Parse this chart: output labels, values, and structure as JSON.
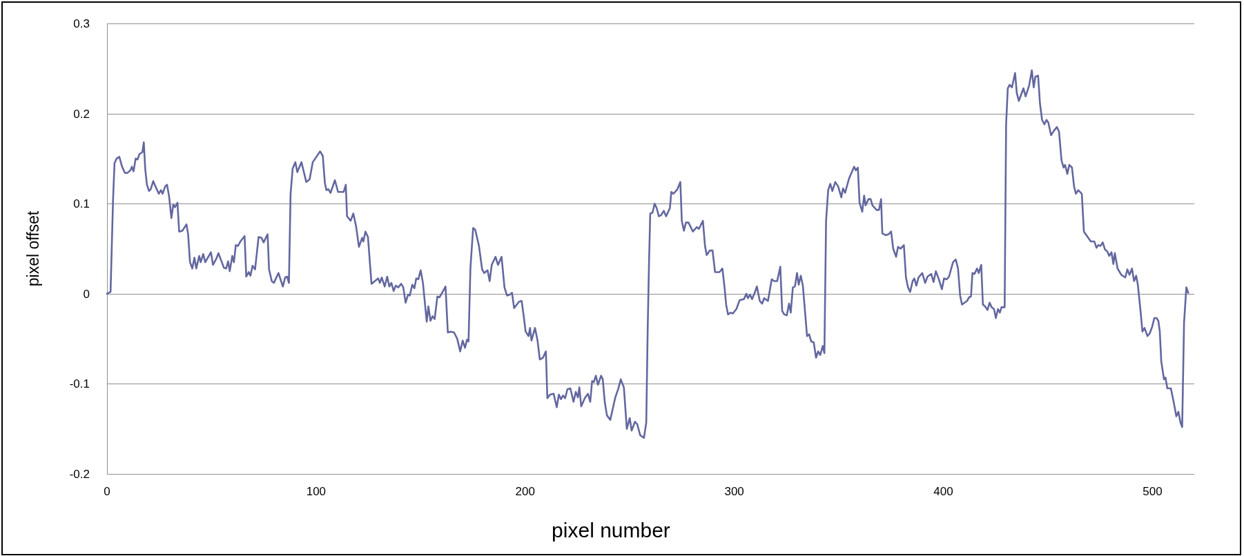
{
  "chart_data": {
    "type": "line",
    "xlabel": "pixel number",
    "ylabel": "pixel offset",
    "x": [
      0,
      1.7,
      2.9,
      3.6,
      4.6,
      5.9,
      7.2,
      8.6,
      9.7,
      11.2,
      11.9,
      12.7,
      13.7,
      14.6,
      15.5,
      16.9,
      17.6,
      18.3,
      19.1,
      20.1,
      20.9,
      22.1,
      23.2,
      24.8,
      25.8,
      26.6,
      27.8,
      28.7,
      29.7,
      30.8,
      31.7,
      32.5,
      33.7,
      34.5,
      36.1,
      38.0,
      38.8,
      39.7,
      40.8,
      41.8,
      42.7,
      44.1,
      44.8,
      46.0,
      47.0,
      49.7,
      50.7,
      52.3,
      53.3,
      54.4,
      55.9,
      57.0,
      57.9,
      58.7,
      59.9,
      60.7,
      61.6,
      62.6,
      63.8,
      65.8,
      66.6,
      67.8,
      68.6,
      69.6,
      70.8,
      72.5,
      73.9,
      74.9,
      76.8,
      77.5,
      78.8,
      79.8,
      82.0,
      84.1,
      85.2,
      86.1,
      87.0,
      87.8,
      88.8,
      90.1,
      91.0,
      93.0,
      95.3,
      96.9,
      98.4,
      101.9,
      103.2,
      104.2,
      104.9,
      105.9,
      106.9,
      109.0,
      110.5,
      113.2,
      114.2,
      114.8,
      116.5,
      117.8,
      119.1,
      120.5,
      122.0,
      122.6,
      123.6,
      124.8,
      126.5,
      129.7,
      130.5,
      131.4,
      132.8,
      134.0,
      135.0,
      136.0,
      137.1,
      138.1,
      139.3,
      140.7,
      141.7,
      142.8,
      144.0,
      144.8,
      146.0,
      147.0,
      147.9,
      148.9,
      150.0,
      151.1,
      152.9,
      153.7,
      154.7,
      155.7,
      156.7,
      158.0,
      159.0,
      160.5,
      161.9,
      163.0,
      164.3,
      166.0,
      167.5,
      168.9,
      170.1,
      171.2,
      172.2,
      172.9,
      173.8,
      175.1,
      176.1,
      177.9,
      179.4,
      180.4,
      182.0,
      183.0,
      184.0,
      185.8,
      187.0,
      188.7,
      190.1,
      191.3,
      192.7,
      193.7,
      194.7,
      197.0,
      198.3,
      199.2,
      200.2,
      201.6,
      202.3,
      203.0,
      204.7,
      205.9,
      207.0,
      208.5,
      209.9,
      210.6,
      211.9,
      213.6,
      215.1,
      216.1,
      217.1,
      218.1,
      219.1,
      220.2,
      221.6,
      223.1,
      224.2,
      225.2,
      225.9,
      226.8,
      228.5,
      230.0,
      231.1,
      232.0,
      232.8,
      233.8,
      234.8,
      236.3,
      237.1,
      238.1,
      239.1,
      240.7,
      243.1,
      244.6,
      245.7,
      247.2,
      248.6,
      250.0,
      250.9,
      252.5,
      253.6,
      255.0,
      256.8,
      257.9,
      258.6,
      259.2,
      259.8,
      260.9,
      261.9,
      262.9,
      263.9,
      264.9,
      266.3,
      267.4,
      269.2,
      269.9,
      270.9,
      272.8,
      274.2,
      274.9,
      275.9,
      276.9,
      278.1,
      280.2,
      282.1,
      283.1,
      285.0,
      286.0,
      286.8,
      288.3,
      289.6,
      290.8,
      292.9,
      294.3,
      295.3,
      296.1,
      297.0,
      298.2,
      299.3,
      301.0,
      302.6,
      304.6,
      305.8,
      306.5,
      307.5,
      308.5,
      309.6,
      310.8,
      312.2,
      313.3,
      314.3,
      316.1,
      317.9,
      319.1,
      320.5,
      322.0,
      322.9,
      323.9,
      325.1,
      326.2,
      327.0,
      328.0,
      329.0,
      330.0,
      330.8,
      331.8,
      332.8,
      334.8,
      335.8,
      336.8,
      338.0,
      339.1,
      340.1,
      341.1,
      342.3,
      343.1,
      343.9,
      344.9,
      345.9,
      346.9,
      348.3,
      349.7,
      351.2,
      352.0,
      353.0,
      354.9,
      357.3,
      358.1,
      359.1,
      359.9,
      361.2,
      362.1,
      362.8,
      364.2,
      365.2,
      366.1,
      368.1,
      369.2,
      370.2,
      370.8,
      372.4,
      373.8,
      375.0,
      376.0,
      377.4,
      378.3,
      379.5,
      381.1,
      382.1,
      383.1,
      384.1,
      385.3,
      386.1,
      387.1,
      388.1,
      389.9,
      391.3,
      392.4,
      394.2,
      395.3,
      396.4,
      397.7,
      399.3,
      400.3,
      401.6,
      402.7,
      404.6,
      405.9,
      407.0,
      408.0,
      408.9,
      411.3,
      412.3,
      413.2,
      413.9,
      414.9,
      416.1,
      416.9,
      418.1,
      418.9,
      419.9,
      421.1,
      422.1,
      423.1,
      424.2,
      425.1,
      426.1,
      427.0,
      427.8,
      429.3,
      430.0,
      430.8,
      431.7,
      432.8,
      434.3,
      435.1,
      436.1,
      438.3,
      439.3,
      441.0,
      442.3,
      443.2,
      444.0,
      445.3,
      446.2,
      447.2,
      448.3,
      449.3,
      450.2,
      451.5,
      452.9,
      454.3,
      455.3,
      456.5,
      457.5,
      458.2,
      459.3,
      460.2,
      461.5,
      462.5,
      463.4,
      464.5,
      466.2,
      467.2,
      468.7,
      470.5,
      472.2,
      473.2,
      474.1,
      475.1,
      476.2,
      477.3,
      478.4,
      479.3,
      480.4,
      481.3,
      482.0,
      483.3,
      485.1,
      487.0,
      488.0,
      489.0,
      490.2,
      491.2,
      492.2,
      493.0,
      494.2,
      495.2,
      496.2,
      497.6,
      498.7,
      499.8,
      500.9,
      501.9,
      502.8,
      503.5,
      504.2,
      505.5,
      506.2,
      507.1,
      508.8,
      510.2,
      511.4,
      512.4,
      513.4,
      514.2,
      515.1,
      516.2,
      517.1
    ],
    "series": [
      {
        "color": "#63679f",
        "values": [
          0,
          0.002,
          0.105,
          0.145,
          0.15,
          0.152,
          0.141,
          0.134,
          0.134,
          0.137,
          0.141,
          0.136,
          0.15,
          0.149,
          0.155,
          0.157,
          0.168,
          0.138,
          0.121,
          0.114,
          0.116,
          0.125,
          0.119,
          0.111,
          0.115,
          0.111,
          0.119,
          0.121,
          0.108,
          0.084,
          0.099,
          0.096,
          0.101,
          0.069,
          0.07,
          0.077,
          0.066,
          0.035,
          0.028,
          0.04,
          0.028,
          0.042,
          0.035,
          0.044,
          0.035,
          0.046,
          0.032,
          0.039,
          0.045,
          0.038,
          0.029,
          0.028,
          0.036,
          0.025,
          0.042,
          0.035,
          0.054,
          0.053,
          0.058,
          0.064,
          0.019,
          0.024,
          0.02,
          0.031,
          0.027,
          0.063,
          0.062,
          0.057,
          0.066,
          0.027,
          0.014,
          0.012,
          0.023,
          0.008,
          0.018,
          0.019,
          0.012,
          0.111,
          0.139,
          0.146,
          0.135,
          0.146,
          0.124,
          0.127,
          0.146,
          0.158,
          0.153,
          0.123,
          0.115,
          0.116,
          0.112,
          0.126,
          0.113,
          0.113,
          0.121,
          0.086,
          0.081,
          0.089,
          0.075,
          0.052,
          0.062,
          0.058,
          0.069,
          0.063,
          0.011,
          0.017,
          0.012,
          0.018,
          0.008,
          0.019,
          0.008,
          0.012,
          0.003,
          0.009,
          0.007,
          0.011,
          0.007,
          -0.01,
          -0.001,
          -0.002,
          0.01,
          0.006,
          0.017,
          0.016,
          0.026,
          0.012,
          -0.031,
          -0.014,
          -0.03,
          -0.025,
          -0.028,
          -0.003,
          -0.004,
          0.002,
          0.008,
          -0.043,
          -0.042,
          -0.043,
          -0.05,
          -0.064,
          -0.052,
          -0.06,
          -0.051,
          -0.053,
          0.028,
          0.073,
          0.071,
          0.053,
          0.027,
          0.023,
          0.026,
          0.014,
          0.032,
          0.041,
          0.032,
          0.041,
          0.007,
          -0.002,
          -0.001,
          0.001,
          -0.016,
          -0.009,
          -0.008,
          -0.023,
          -0.042,
          -0.047,
          -0.038,
          -0.052,
          -0.038,
          -0.052,
          -0.073,
          -0.071,
          -0.064,
          -0.116,
          -0.112,
          -0.111,
          -0.126,
          -0.112,
          -0.117,
          -0.113,
          -0.116,
          -0.106,
          -0.105,
          -0.12,
          -0.109,
          -0.115,
          -0.104,
          -0.125,
          -0.116,
          -0.111,
          -0.12,
          -0.097,
          -0.098,
          -0.091,
          -0.101,
          -0.091,
          -0.095,
          -0.121,
          -0.135,
          -0.14,
          -0.115,
          -0.105,
          -0.095,
          -0.104,
          -0.15,
          -0.138,
          -0.152,
          -0.142,
          -0.145,
          -0.157,
          -0.16,
          -0.143,
          -0.038,
          0.032,
          0.089,
          0.09,
          0.1,
          0.095,
          0.086,
          0.087,
          0.092,
          0.086,
          0.095,
          0.113,
          0.111,
          0.116,
          0.124,
          0.081,
          0.07,
          0.079,
          0.079,
          0.069,
          0.074,
          0.072,
          0.081,
          0.053,
          0.043,
          0.048,
          0.048,
          0.024,
          0.024,
          0.028,
          0.008,
          -0.012,
          -0.023,
          -0.021,
          -0.022,
          -0.017,
          -0.007,
          -0.006,
          0.0,
          -0.005,
          -0.001,
          -0.006,
          0.0,
          0.008,
          -0.008,
          -0.011,
          -0.005,
          -0.008,
          0.016,
          0.014,
          0.014,
          0.03,
          -0.019,
          -0.023,
          -0.024,
          -0.011,
          -0.021,
          0.007,
          0.008,
          0.023,
          0.01,
          0.02,
          0.009,
          -0.047,
          -0.045,
          -0.053,
          -0.054,
          -0.071,
          -0.064,
          -0.068,
          -0.058,
          -0.066,
          0.081,
          0.115,
          0.122,
          0.114,
          0.124,
          0.119,
          0.107,
          0.117,
          0.112,
          0.128,
          0.141,
          0.137,
          0.14,
          0.101,
          0.091,
          0.109,
          0.098,
          0.105,
          0.105,
          0.098,
          0.093,
          0.093,
          0.105,
          0.067,
          0.065,
          0.066,
          0.069,
          0.05,
          0.041,
          0.052,
          0.05,
          0.054,
          0.018,
          0.007,
          0.002,
          0.014,
          0.017,
          0.009,
          0.018,
          0.023,
          0.012,
          0.019,
          0.022,
          0.013,
          0.025,
          0.017,
          0.005,
          0.017,
          0.016,
          0.019,
          0.035,
          0.038,
          0.028,
          -0.002,
          -0.012,
          -0.008,
          -0.004,
          -0.003,
          0.023,
          0.022,
          0.028,
          0.023,
          0.032,
          -0.012,
          -0.014,
          -0.018,
          -0.01,
          -0.015,
          -0.017,
          -0.027,
          -0.017,
          -0.021,
          -0.015,
          -0.015,
          0.188,
          0.228,
          0.232,
          0.229,
          0.245,
          0.223,
          0.214,
          0.228,
          0.219,
          0.231,
          0.248,
          0.229,
          0.241,
          0.242,
          0.211,
          0.193,
          0.188,
          0.193,
          0.19,
          0.176,
          0.181,
          0.185,
          0.18,
          0.148,
          0.14,
          0.143,
          0.133,
          0.143,
          0.14,
          0.119,
          0.111,
          0.115,
          0.111,
          0.069,
          0.064,
          0.058,
          0.058,
          0.051,
          0.054,
          0.053,
          0.057,
          0.049,
          0.047,
          0.042,
          0.046,
          0.033,
          0.045,
          0.028,
          0.021,
          0.018,
          0.027,
          0.021,
          0.028,
          0.014,
          0.02,
          0.01,
          -0.017,
          -0.042,
          -0.038,
          -0.047,
          -0.044,
          -0.037,
          -0.027,
          -0.027,
          -0.03,
          -0.042,
          -0.075,
          -0.095,
          -0.093,
          -0.105,
          -0.105,
          -0.121,
          -0.136,
          -0.131,
          -0.143,
          -0.148,
          -0.032,
          0.007,
          0.001
        ]
      }
    ],
    "xlim": [
      0,
      520
    ],
    "ylim": [
      -0.2,
      0.3
    ],
    "xticks": [
      0,
      100,
      200,
      300,
      400,
      500
    ],
    "yticks": [
      -0.2,
      -0.1,
      0,
      0.1,
      0.2,
      0.3
    ],
    "grid": "y"
  }
}
